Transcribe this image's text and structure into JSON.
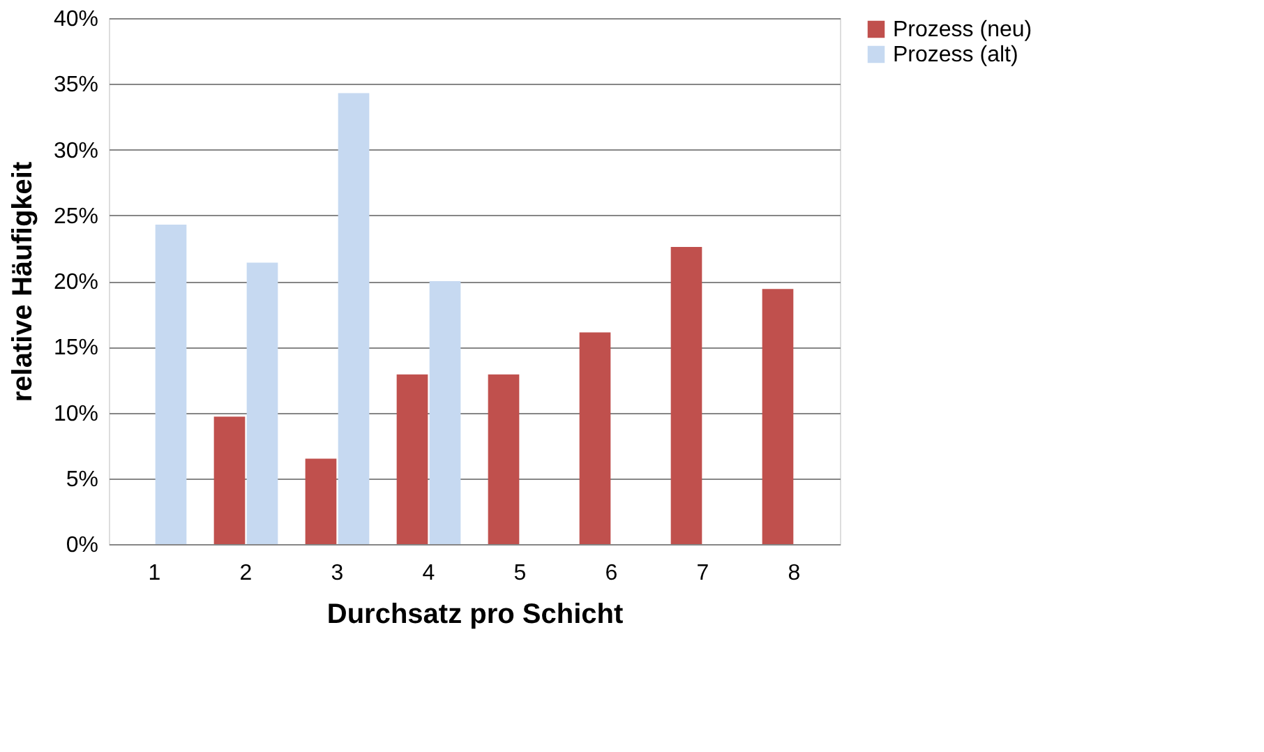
{
  "chart_data": {
    "type": "bar",
    "xlabel": "Durchsatz pro Schicht",
    "ylabel": "relative Häufigkeit",
    "categories": [
      "1",
      "2",
      "3",
      "4",
      "5",
      "6",
      "7",
      "8"
    ],
    "series": [
      {
        "name": "Prozess (neu)",
        "color": "#c0504d",
        "values": [
          null,
          9.7,
          6.5,
          12.9,
          12.9,
          16.1,
          22.6,
          19.4
        ]
      },
      {
        "name": "Prozess (alt)",
        "color": "#c6d9f1",
        "values": [
          24.3,
          21.4,
          34.3,
          20.0,
          null,
          null,
          null,
          null
        ]
      }
    ],
    "ylim": [
      0,
      40
    ],
    "yticks": [
      {
        "value": 0,
        "label": "0%"
      },
      {
        "value": 5,
        "label": "5%"
      },
      {
        "value": 10,
        "label": "10%"
      },
      {
        "value": 15,
        "label": "15%"
      },
      {
        "value": 20,
        "label": "20%"
      },
      {
        "value": 25,
        "label": "25%"
      },
      {
        "value": 30,
        "label": "30%"
      },
      {
        "value": 35,
        "label": "35%"
      },
      {
        "value": 40,
        "label": "40%"
      }
    ],
    "grid": "y",
    "legend": "right"
  }
}
